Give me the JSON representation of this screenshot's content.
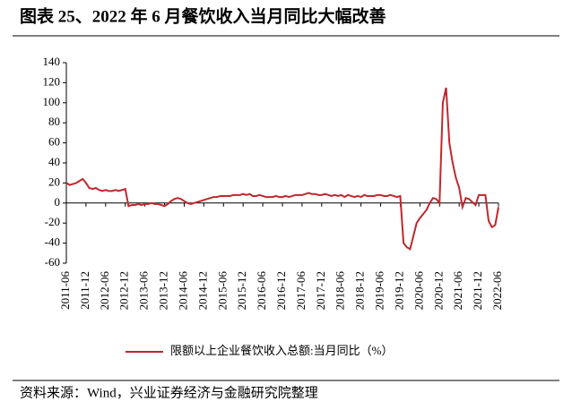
{
  "chart_data": {
    "type": "line",
    "title": "图表 25、2022 年 6 月餐饮收入当月同比大幅改善",
    "source": "资料来源：Wind，兴业证券经济与金融研究院整理",
    "categories": [
      "2011-06",
      null,
      null,
      null,
      null,
      null,
      "2011-12",
      null,
      null,
      null,
      null,
      null,
      "2012-06",
      null,
      null,
      null,
      null,
      null,
      "2012-12",
      null,
      null,
      null,
      null,
      null,
      "2013-06",
      null,
      null,
      null,
      null,
      null,
      "2013-12",
      null,
      null,
      null,
      null,
      null,
      "2014-06",
      null,
      null,
      null,
      null,
      null,
      "2014-12",
      null,
      null,
      null,
      null,
      null,
      "2015-06",
      null,
      null,
      null,
      null,
      null,
      "2015-12",
      null,
      null,
      null,
      null,
      null,
      "2016-06",
      null,
      null,
      null,
      null,
      null,
      "2016-12",
      null,
      null,
      null,
      null,
      null,
      "2017-06",
      null,
      null,
      null,
      null,
      null,
      "2017-12",
      null,
      null,
      null,
      null,
      null,
      "2018-06",
      null,
      null,
      null,
      null,
      null,
      "2018-12",
      null,
      null,
      null,
      null,
      null,
      "2019-06",
      null,
      null,
      null,
      null,
      null,
      "2019-12",
      null,
      null,
      null,
      null,
      null,
      "2020-06",
      null,
      null,
      null,
      null,
      null,
      "2020-12",
      null,
      null,
      null,
      null,
      null,
      "2021-06",
      null,
      null,
      null,
      null,
      null,
      "2021-12",
      null,
      null,
      null,
      null,
      null,
      "2022-06"
    ],
    "series": [
      {
        "name": "限额以上企业餐饮收入总额:当月同比（%）",
        "color": "#c0282d",
        "values": [
          20,
          18,
          19,
          20,
          22,
          24,
          20,
          15,
          14,
          15,
          13,
          12,
          13,
          12,
          12,
          13,
          12,
          13,
          14,
          -3,
          -2,
          -2,
          -1,
          -2,
          -1,
          -1,
          0,
          -1,
          -1,
          -2,
          -3,
          -1,
          2,
          4,
          5,
          4,
          2,
          0,
          -1,
          0,
          1,
          2,
          3,
          4,
          5,
          6,
          6,
          7,
          7,
          7,
          7,
          8,
          8,
          8,
          9,
          8,
          9,
          7,
          7,
          8,
          7,
          6,
          6,
          6,
          7,
          6,
          6,
          7,
          6,
          7,
          8,
          8,
          8,
          9,
          10,
          9,
          9,
          8,
          8,
          9,
          8,
          7,
          8,
          7,
          8,
          6,
          8,
          7,
          6,
          7,
          6,
          8,
          7,
          7,
          7,
          8,
          8,
          7,
          7,
          8,
          7,
          6,
          7,
          -40,
          -44,
          -46,
          -33,
          -20,
          -15,
          -11,
          -7,
          0,
          5,
          4,
          0,
          100,
          115,
          60,
          40,
          25,
          15,
          -4,
          5,
          4,
          1,
          -2,
          8,
          8,
          8,
          -18,
          -24,
          -22,
          -4
        ]
      }
    ],
    "ylim": [
      -60,
      140
    ],
    "yticks": [
      -60,
      -40,
      -20,
      0,
      20,
      40,
      60,
      80,
      100,
      120,
      140
    ]
  }
}
